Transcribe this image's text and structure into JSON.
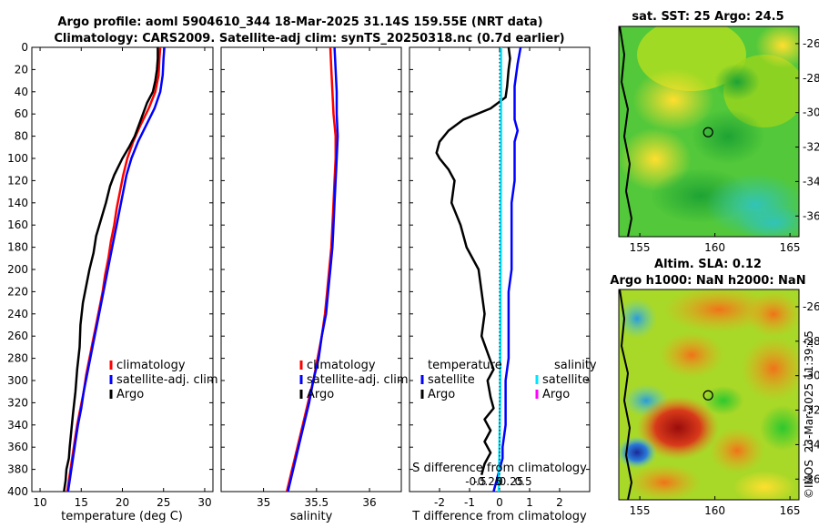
{
  "header": {
    "title_line1": "Argo profile: aoml 5904610_344 18-Mar-2025 31.14S 159.55E (NRT data)",
    "title_line2": "Climatology: CARS2009. Satellite-adj clim: synTS_20250318.nc (0.7d earlier)"
  },
  "colors": {
    "climatology": "#ff0000",
    "satellite": "#0000ff",
    "argo": "#000000",
    "sal_satellite": "#00e5ff",
    "sal_argo": "#ff00ff"
  },
  "chart_data": [
    {
      "type": "line",
      "panel": "temperature",
      "xlabel": "temperature (deg C)",
      "xlim": [
        9,
        31
      ],
      "xticks": [
        "10",
        "15",
        "20",
        "25",
        "30"
      ],
      "xtick_values": [
        10,
        15,
        20,
        25,
        30
      ],
      "ylim": [
        0,
        400
      ],
      "yticks": [
        "0",
        "20",
        "40",
        "60",
        "80",
        "100",
        "120",
        "140",
        "160",
        "180",
        "200",
        "220",
        "240",
        "260",
        "280",
        "300",
        "320",
        "340",
        "360",
        "380",
        "400"
      ],
      "ytick_values": [
        0,
        20,
        40,
        60,
        80,
        100,
        120,
        140,
        160,
        180,
        200,
        220,
        240,
        260,
        280,
        300,
        320,
        340,
        360,
        380,
        400
      ],
      "legend": [
        "climatology",
        "satellite-adj. clim",
        "Argo"
      ],
      "series": [
        {
          "name": "climatology",
          "color": "#ff0000",
          "x": [
            24.6,
            24.5,
            24.4,
            24.0,
            23.2,
            22.2,
            21.3,
            20.6,
            20.1,
            19.7,
            19.3,
            19.0,
            18.6,
            18.3,
            17.9,
            17.6,
            17.2,
            16.8,
            16.4,
            16.0,
            15.6,
            15.3,
            14.9,
            14.5,
            14.2,
            13.9,
            13.6,
            13.3
          ],
          "y": [
            0,
            10,
            25,
            40,
            55,
            70,
            85,
            100,
            115,
            130,
            145,
            160,
            175,
            190,
            205,
            220,
            235,
            250,
            265,
            280,
            295,
            310,
            325,
            340,
            355,
            370,
            385,
            400
          ]
        },
        {
          "name": "satellite-adj. clim",
          "color": "#0000ff",
          "x": [
            25.1,
            25.0,
            24.9,
            24.6,
            23.9,
            22.9,
            21.9,
            21.1,
            20.5,
            20.1,
            19.7,
            19.3,
            18.9,
            18.5,
            18.1,
            17.7,
            17.3,
            16.9,
            16.5,
            16.1,
            15.7,
            15.3,
            15.0,
            14.6,
            14.3,
            14.0,
            13.7,
            13.4
          ],
          "y": [
            0,
            10,
            25,
            40,
            55,
            70,
            85,
            100,
            115,
            130,
            145,
            160,
            175,
            190,
            205,
            220,
            235,
            250,
            265,
            280,
            295,
            310,
            325,
            340,
            355,
            370,
            385,
            400
          ]
        },
        {
          "name": "Argo",
          "color": "#000000",
          "x": [
            24.3,
            24.3,
            24.2,
            24.0,
            23.7,
            23.0,
            22.5,
            22.0,
            21.5,
            20.8,
            20.0,
            19.0,
            18.5,
            18.0,
            17.4,
            16.8,
            16.5,
            16.0,
            15.6,
            15.2,
            14.9,
            14.8,
            14.5,
            14.3,
            14.0,
            13.8,
            13.6,
            13.5,
            13.2,
            13.1,
            12.9
          ],
          "y": [
            0,
            10,
            20,
            30,
            40,
            50,
            60,
            70,
            80,
            90,
            100,
            115,
            125,
            140,
            155,
            170,
            185,
            200,
            215,
            230,
            250,
            270,
            290,
            310,
            330,
            345,
            360,
            370,
            380,
            390,
            400
          ]
        }
      ]
    },
    {
      "type": "line",
      "panel": "salinity",
      "xlabel": "salinity",
      "xlim": [
        34.6,
        36.3
      ],
      "xticks": [
        "35",
        "35.5",
        "36"
      ],
      "xtick_values": [
        35,
        35.5,
        36
      ],
      "ylim": [
        0,
        400
      ],
      "legend": [
        "climatology",
        "satellite-adj. clim",
        "Argo"
      ],
      "series": [
        {
          "name": "climatology",
          "color": "#ff0000",
          "x": [
            35.63,
            35.64,
            35.65,
            35.66,
            35.68,
            35.68,
            35.67,
            35.66,
            35.65,
            35.64,
            35.62,
            35.6,
            35.58,
            35.55,
            35.51,
            35.47,
            35.42,
            35.37,
            35.32,
            35.27,
            35.22
          ],
          "y": [
            0,
            20,
            40,
            60,
            80,
            100,
            120,
            140,
            160,
            180,
            200,
            220,
            240,
            260,
            280,
            300,
            320,
            340,
            360,
            380,
            400
          ]
        },
        {
          "name": "satellite-adj. clim",
          "color": "#0000ff",
          "x": [
            35.67,
            35.68,
            35.69,
            35.69,
            35.7,
            35.69,
            35.68,
            35.67,
            35.66,
            35.65,
            35.63,
            35.61,
            35.59,
            35.55,
            35.52,
            35.47,
            35.43,
            35.38,
            35.33,
            35.28,
            35.23
          ],
          "y": [
            0,
            20,
            40,
            60,
            80,
            100,
            120,
            140,
            160,
            180,
            200,
            220,
            240,
            260,
            280,
            300,
            320,
            340,
            360,
            380,
            400
          ]
        }
      ]
    },
    {
      "type": "line",
      "panel": "difference",
      "xlabel": "T difference from climatology",
      "xlim": [
        -3,
        3
      ],
      "xticks": [
        "-2",
        "-1",
        "0",
        "1",
        "2"
      ],
      "xtick_values": [
        -2,
        -1,
        0,
        1,
        2
      ],
      "top_label": "S difference from climatology",
      "top_ticks": [
        "-0.5",
        "-0.25",
        "0",
        "0.25",
        "0.5"
      ],
      "top_tick_values": [
        -0.5,
        -0.25,
        0,
        0.25,
        0.5
      ],
      "ylim": [
        0,
        400
      ],
      "legend_left_title": "temperature",
      "legend_right_title": "salinity",
      "legend_left": [
        "satellite",
        "Argo"
      ],
      "legend_right": [
        "satellite",
        "Argo"
      ],
      "series": [
        {
          "name": "T satellite",
          "color": "#0000ff",
          "x": [
            0.7,
            0.6,
            0.5,
            0.5,
            0.5,
            0.6,
            0.5,
            0.5,
            0.5,
            0.4,
            0.4,
            0.4,
            0.4,
            0.3,
            0.3,
            0.3,
            0.3,
            0.2,
            0.2,
            0.2,
            0.1,
            0.1,
            0.0,
            -0.1,
            -0.2
          ],
          "y": [
            0,
            15,
            35,
            50,
            65,
            75,
            85,
            100,
            120,
            140,
            160,
            180,
            200,
            220,
            240,
            260,
            280,
            300,
            320,
            340,
            360,
            370,
            380,
            390,
            400
          ]
        },
        {
          "name": "T Argo",
          "color": "#000000",
          "x": [
            0.3,
            0.35,
            0.3,
            0.25,
            0.2,
            -0.3,
            -1.2,
            -1.7,
            -2.0,
            -2.1,
            -2.0,
            -1.7,
            -1.5,
            -1.6,
            -1.3,
            -1.1,
            -0.7,
            -0.6,
            -0.5,
            -0.6,
            -0.4,
            -0.2,
            -0.4,
            -0.3,
            -0.2,
            -0.5,
            -0.3,
            -0.5,
            -0.3,
            -0.5,
            -0.6
          ],
          "y": [
            0,
            10,
            20,
            35,
            45,
            55,
            65,
            75,
            85,
            95,
            100,
            110,
            120,
            140,
            160,
            180,
            200,
            220,
            240,
            260,
            275,
            290,
            300,
            315,
            325,
            335,
            345,
            355,
            365,
            375,
            385
          ]
        },
        {
          "name": "S satellite",
          "color": "#00e5ff",
          "x": [
            0.05,
            0.05,
            0.05,
            0.05,
            0.04,
            0.04,
            0.03,
            0.03,
            0.02,
            0.02,
            0.01,
            0.0,
            -0.01,
            -0.02,
            -0.03
          ],
          "y": [
            0,
            30,
            60,
            100,
            140,
            180,
            220,
            250,
            280,
            310,
            330,
            350,
            370,
            390,
            400
          ]
        }
      ]
    }
  ],
  "maps": {
    "sst": {
      "title": "sat. SST: 25 Argo: 24.5",
      "xticks": [
        "155",
        "160",
        "165"
      ],
      "xtick_values": [
        155,
        160,
        165
      ],
      "yticks": [
        "-26",
        "-28",
        "-30",
        "-32",
        "-34",
        "-36"
      ],
      "ytick_values": [
        -26,
        -28,
        -30,
        -32,
        -34,
        -36
      ]
    },
    "sla": {
      "title1": "Altim. SLA: 0.12",
      "title2": "Argo h1000: NaN h2000: NaN",
      "xticks": [
        "155",
        "160",
        "165"
      ],
      "xtick_values": [
        155,
        160,
        165
      ],
      "yticks": [
        "-26",
        "-28",
        "-30",
        "-32",
        "-34",
        "-36"
      ],
      "ytick_values": [
        -26,
        -28,
        -30,
        -32,
        -34,
        -36
      ]
    },
    "profile_lon": 159.55,
    "profile_lat": -31.14,
    "lon_range": [
      153.6,
      165.6
    ],
    "lat_range": [
      -25.0,
      -37.2
    ]
  },
  "footer": {
    "timestamp": "23-Mar-2025 11:39:25",
    "credit": "©IMOS"
  }
}
